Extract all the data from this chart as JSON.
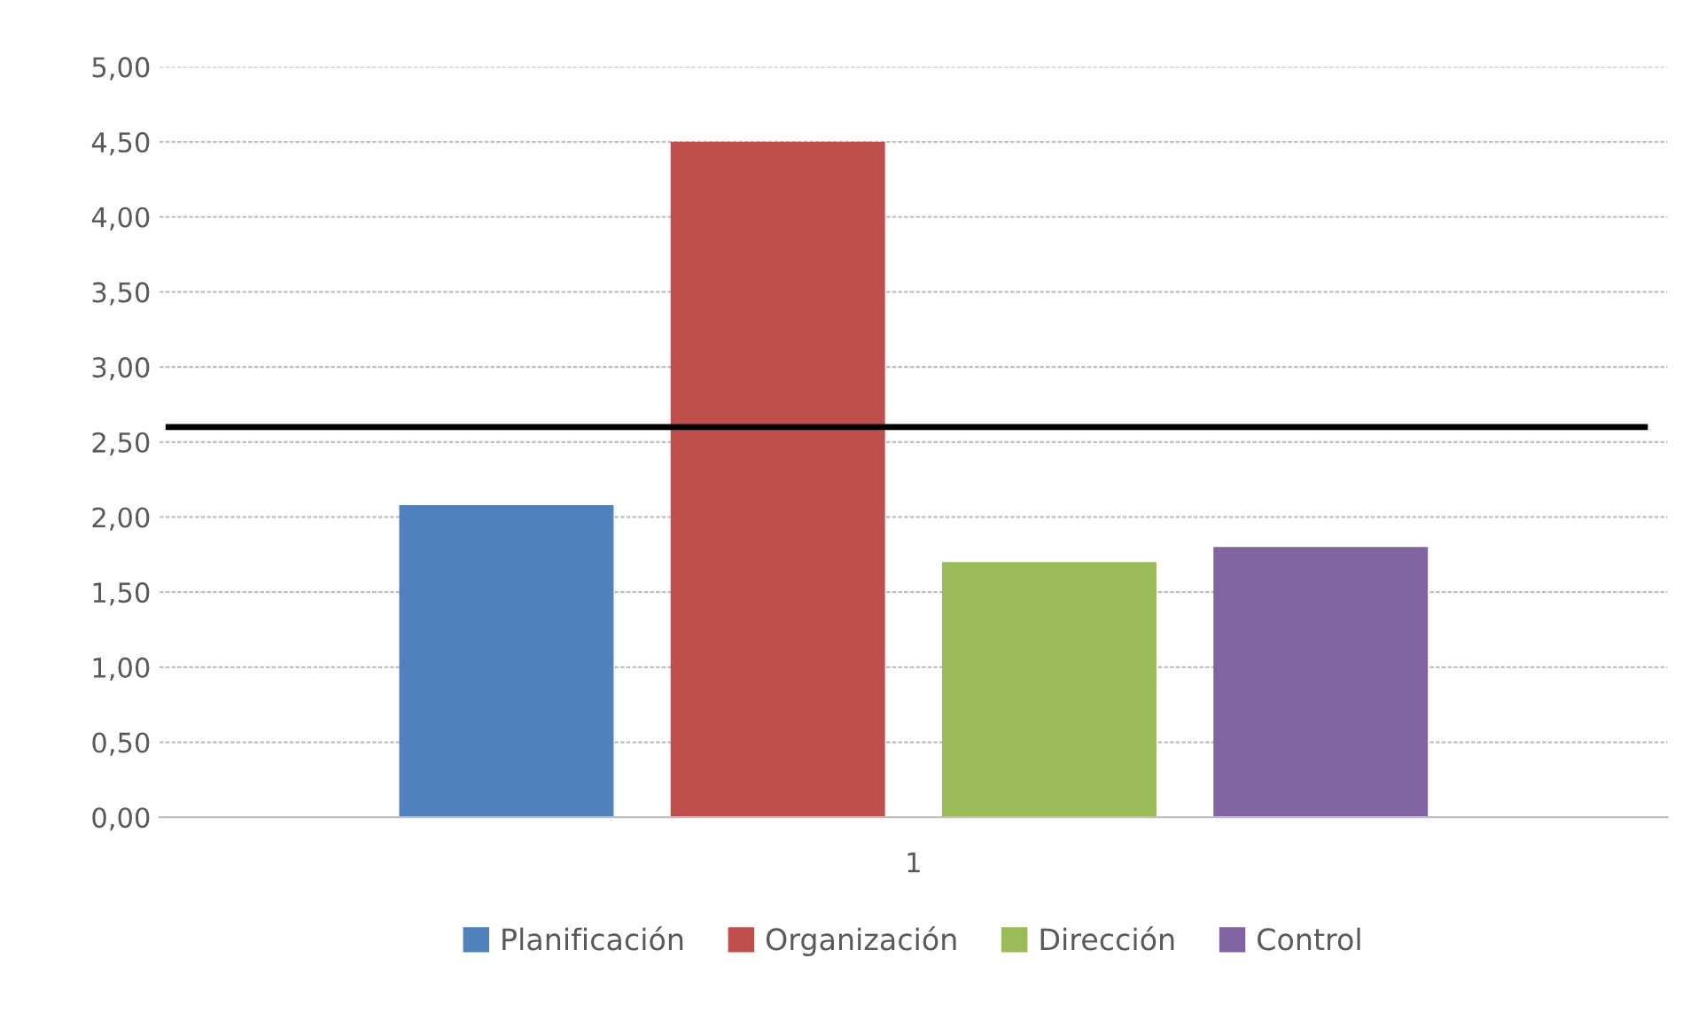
{
  "chart_data": {
    "type": "bar",
    "categories": [
      "1"
    ],
    "series": [
      {
        "name": "Planificación",
        "color": "#4f81bd",
        "values": [
          2.08
        ]
      },
      {
        "name": "Organización",
        "color": "#c0504d",
        "values": [
          4.5
        ]
      },
      {
        "name": "Dirección",
        "color": "#9bbb59",
        "values": [
          1.7
        ]
      },
      {
        "name": "Control",
        "color": "#8064a2",
        "values": [
          1.8
        ]
      }
    ],
    "ylim": [
      0,
      5
    ],
    "yticks": [
      {
        "value": 0,
        "label": "0,00"
      },
      {
        "value": 0.5,
        "label": "0,50"
      },
      {
        "value": 1,
        "label": "1,00"
      },
      {
        "value": 1.5,
        "label": "1,50"
      },
      {
        "value": 2,
        "label": "2,00"
      },
      {
        "value": 2.5,
        "label": "2,50"
      },
      {
        "value": 3,
        "label": "3,00"
      },
      {
        "value": 3.5,
        "label": "3,50"
      },
      {
        "value": 4,
        "label": "4,00"
      },
      {
        "value": 4.5,
        "label": "4,50"
      },
      {
        "value": 5,
        "label": "5,00"
      }
    ],
    "ref_lines": [
      {
        "axis": "y",
        "value": 2.6,
        "color": "#000000"
      }
    ],
    "grid": "y",
    "legend": "bottom"
  }
}
